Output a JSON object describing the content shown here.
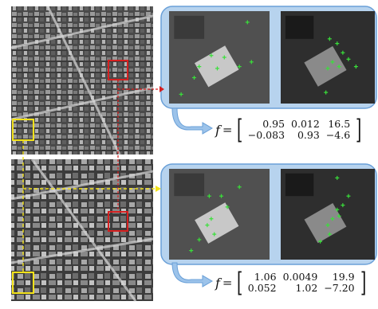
{
  "figure": {
    "colors": {
      "panel_fill": "#b7d3ee",
      "arrow_fill": "#9cc3ea",
      "accent_blue": "#6aa0d8",
      "yellow": "#f2e21a",
      "red": "#d62020",
      "green": "#39e03a"
    },
    "rows": [
      {
        "name": "top",
        "matrix": [
          [
            "0.95",
            "0.012",
            "16.5"
          ],
          [
            "−0.083",
            "0.93",
            "−4.6"
          ]
        ]
      },
      {
        "name": "bottom",
        "matrix": [
          [
            "1.06",
            "0.0049",
            "19.9"
          ],
          [
            "0.052",
            "1.02",
            "−7.20"
          ]
        ]
      }
    ]
  },
  "formula_symbol": "f",
  "formula_equals": "="
}
